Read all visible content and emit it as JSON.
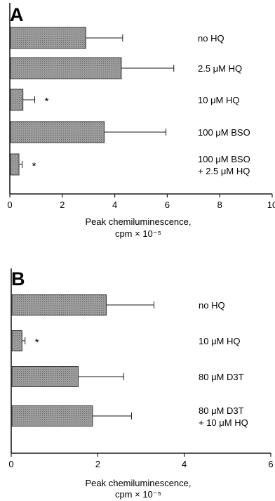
{
  "chart_data": [
    {
      "type": "bar",
      "orientation": "horizontal",
      "panel_label": "A",
      "categories": [
        [
          "no HQ"
        ],
        [
          "2.5 μM HQ"
        ],
        [
          "10 μM HQ"
        ],
        [
          "100 μM BSO"
        ],
        [
          "100 μM BSO",
          "+ 2.5 μM HQ"
        ]
      ],
      "values": [
        2.9,
        4.25,
        0.5,
        3.6,
        0.35
      ],
      "errors": [
        1.4,
        2.0,
        0.45,
        2.35,
        0.12
      ],
      "significant": [
        false,
        false,
        true,
        false,
        true
      ],
      "significance_marker": "*",
      "xlim": [
        0,
        10
      ],
      "xticks": [
        0,
        2,
        4,
        6,
        8,
        10
      ],
      "xlabel": [
        "Peak chemiluminescence,",
        "cpm × 10⁻⁵"
      ],
      "bar_color": "#9a9a9a"
    },
    {
      "type": "bar",
      "orientation": "horizontal",
      "panel_label": "B",
      "categories": [
        [
          "no HQ"
        ],
        [
          "10 μM HQ"
        ],
        [
          "80 μM D3T"
        ],
        [
          "80 μM D3T",
          "+ 10 μM HQ"
        ]
      ],
      "values": [
        2.2,
        0.25,
        1.55,
        1.88
      ],
      "errors": [
        1.1,
        0.07,
        1.05,
        0.9
      ],
      "significant": [
        false,
        true,
        false,
        false
      ],
      "significance_marker": "*",
      "xlim": [
        0,
        6
      ],
      "xticks": [
        0,
        2,
        4,
        6
      ],
      "xlabel": [
        "Peak chemiluminescence,",
        "cpm × 10⁻⁵"
      ],
      "bar_color": "#9a9a9a"
    }
  ]
}
